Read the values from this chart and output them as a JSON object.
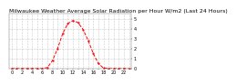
{
  "title": "Milwaukee Weather Average Solar Radiation per Hour W/m2 (Last 24 Hours)",
  "hours": [
    0,
    1,
    2,
    3,
    4,
    5,
    6,
    7,
    8,
    9,
    10,
    11,
    12,
    13,
    14,
    15,
    16,
    17,
    18,
    19,
    20,
    21,
    22,
    23
  ],
  "values": [
    0,
    0,
    0,
    0,
    0,
    0,
    0,
    10,
    80,
    200,
    350,
    450,
    480,
    460,
    390,
    280,
    150,
    50,
    5,
    0,
    0,
    0,
    0,
    0
  ],
  "line_color": "#ff0000",
  "bg_color": "#ffffff",
  "plot_bg": "#ffffff",
  "grid_color": "#888888",
  "ylim": [
    0,
    550
  ],
  "ytick_vals": [
    0,
    100,
    200,
    300,
    400,
    500
  ],
  "ytick_labels": [
    "0",
    "1",
    "2",
    "3",
    "4",
    "5"
  ],
  "title_fontsize": 4.5,
  "tick_fontsize": 3.5
}
